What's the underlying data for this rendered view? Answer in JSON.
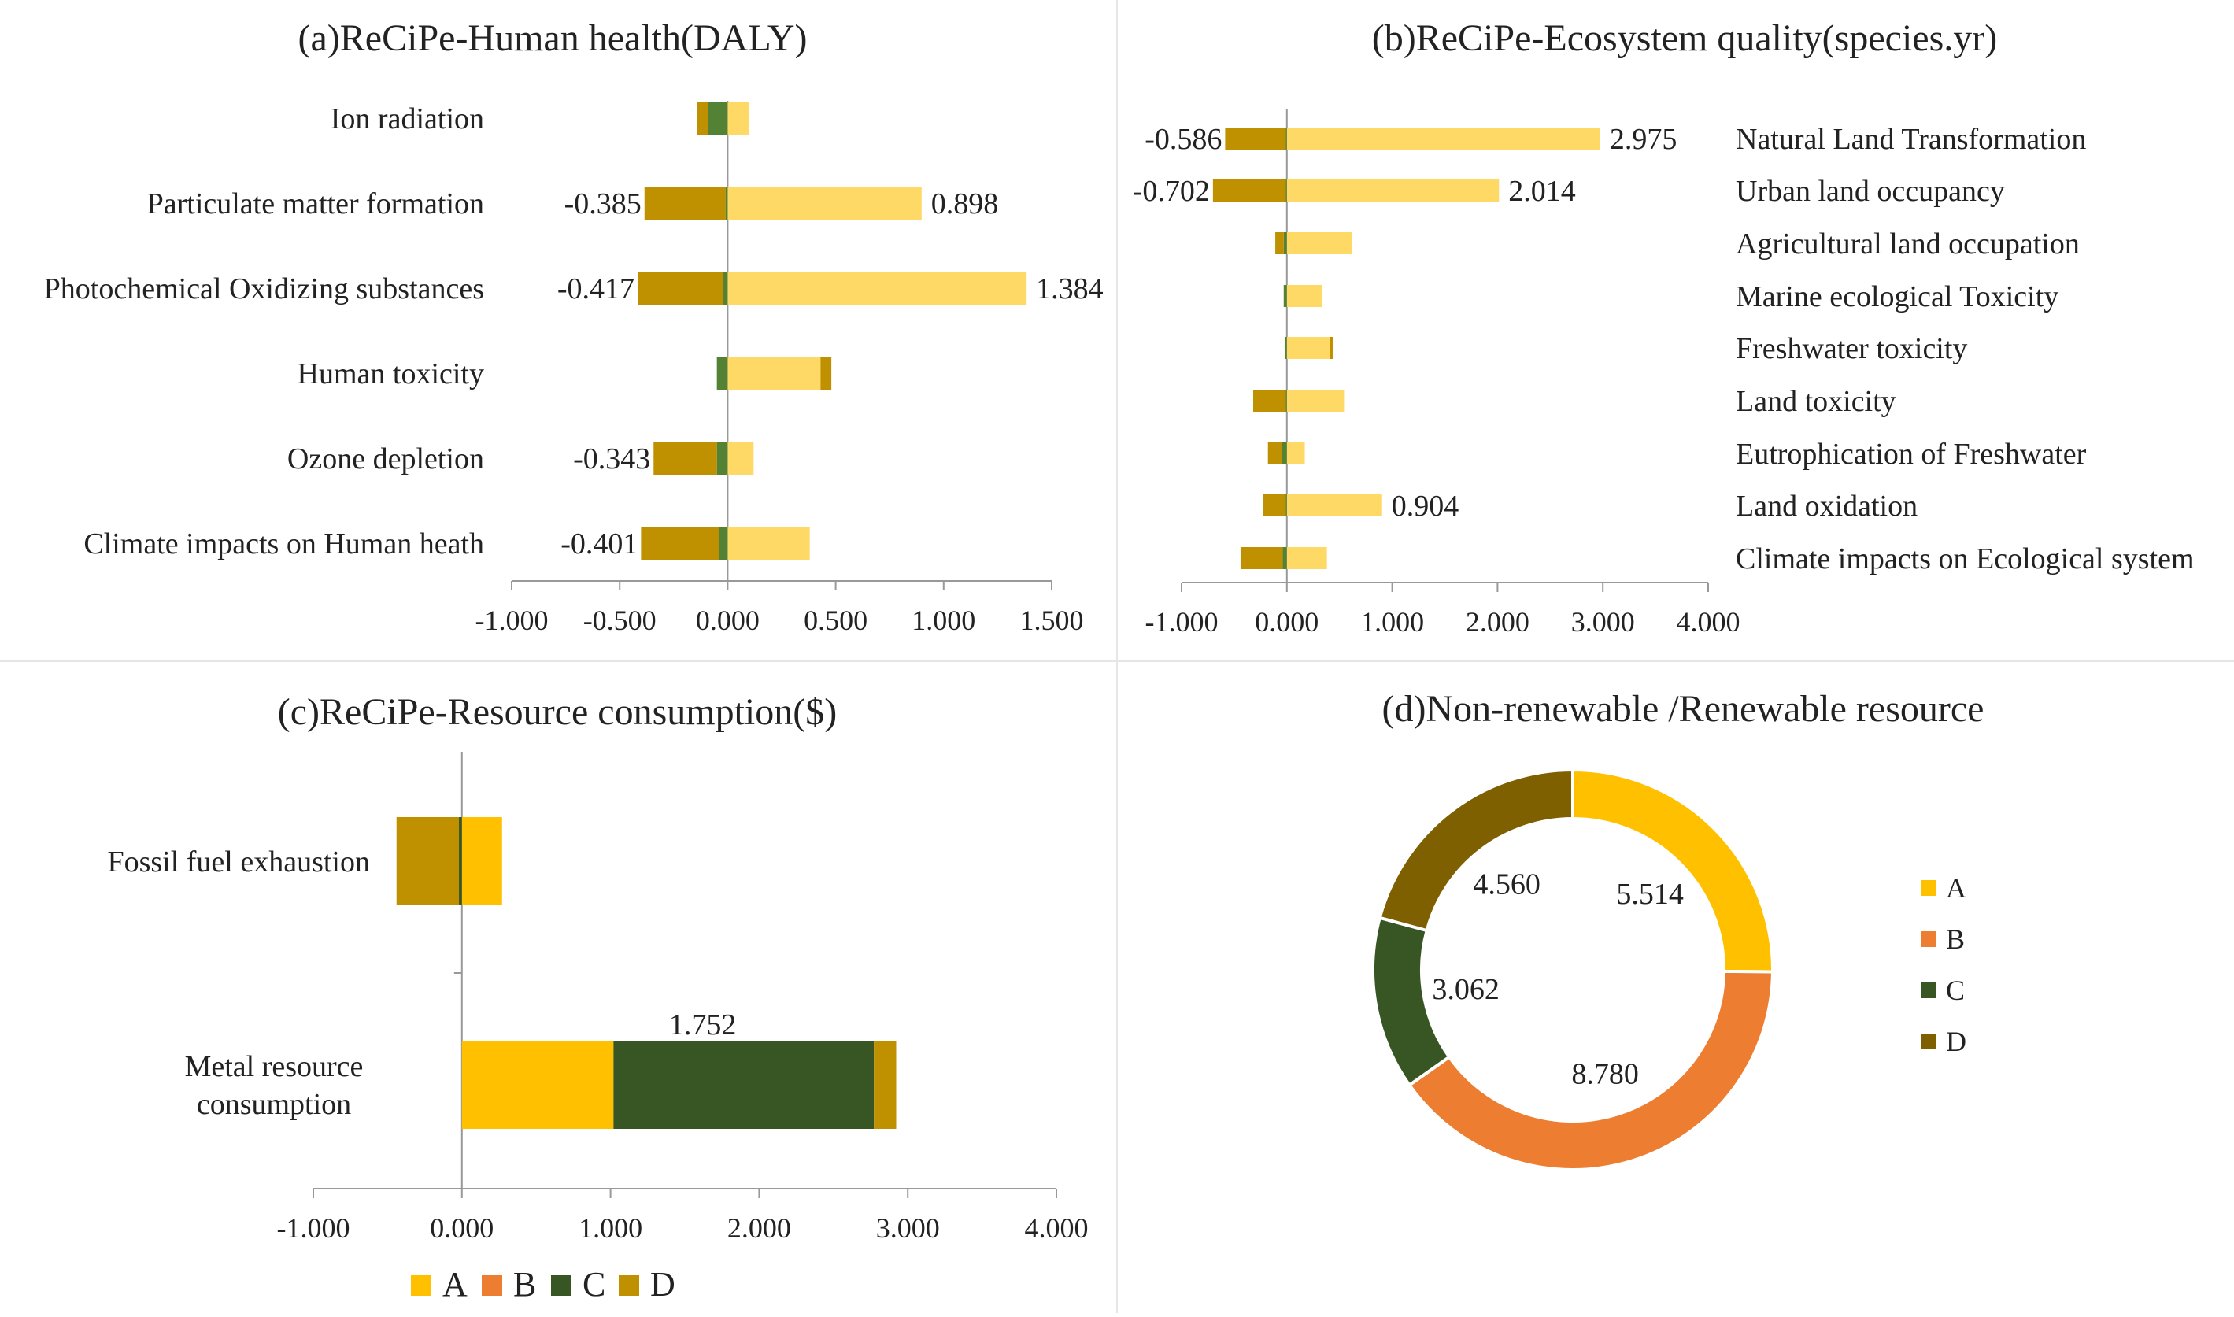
{
  "colors": {
    "A": "#FFD966",
    "A_solid": "#FFC000",
    "B": "#ED7D31",
    "C": "#375623",
    "C_small": "#548235",
    "D": "#BF9000",
    "D_donut": "#7F6000",
    "axis": "#999999",
    "divider": "#e6e6e6"
  },
  "legend": [
    "A",
    "B",
    "C",
    "D"
  ],
  "chart_data": [
    {
      "id": "a",
      "type": "bar",
      "orientation": "horizontal",
      "stacked": true,
      "title": "(a)ReCiPe-Human health(DALY)",
      "xlim": [
        -1.0,
        1.5
      ],
      "ticks": [
        "-1.000",
        "-0.500",
        "0.000",
        "0.500",
        "1.000",
        "1.500"
      ],
      "tick_values": [
        -1.0,
        -0.5,
        0.0,
        0.5,
        1.0,
        1.5
      ],
      "categories": [
        "Ion radiation",
        "Particulate matter formation",
        "Photochemical Oxidizing substances",
        "Human toxicity",
        "Ozone depletion",
        "Climate impacts on Human heath"
      ],
      "series": [
        {
          "key": "A",
          "values": [
            0.1,
            0.898,
            1.384,
            0.43,
            0.12,
            0.38
          ]
        },
        {
          "key": "B",
          "values": [
            0.0,
            0.0,
            0.0,
            0.0,
            0.0,
            0.0
          ]
        },
        {
          "key": "C",
          "values": [
            -0.09,
            -0.01,
            -0.02,
            -0.05,
            -0.05,
            -0.04
          ]
        },
        {
          "key": "D",
          "values": [
            -0.05,
            -0.375,
            -0.397,
            0.05,
            -0.293,
            -0.361
          ]
        }
      ],
      "labels": [
        {
          "cat": 1,
          "side": "neg",
          "text": "-0.385"
        },
        {
          "cat": 1,
          "side": "pos",
          "text": "0.898"
        },
        {
          "cat": 2,
          "side": "neg",
          "text": "-0.417"
        },
        {
          "cat": 2,
          "side": "pos",
          "text": "1.384"
        },
        {
          "cat": 4,
          "side": "neg",
          "text": "-0.343"
        },
        {
          "cat": 5,
          "side": "neg",
          "text": "-0.401"
        }
      ]
    },
    {
      "id": "b",
      "type": "bar",
      "orientation": "horizontal",
      "stacked": true,
      "title": "(b)ReCiPe-Ecosystem quality(species.yr)",
      "xlim": [
        -1.0,
        4.0
      ],
      "ticks": [
        "-1.000",
        "0.000",
        "1.000",
        "2.000",
        "3.000",
        "4.000"
      ],
      "tick_values": [
        -1.0,
        0.0,
        1.0,
        2.0,
        3.0,
        4.0
      ],
      "categories": [
        "Natural Land Transformation",
        "Urban land occupancy",
        "Agricultural land occupation",
        "Marine ecological Toxicity",
        "Freshwater toxicity",
        "Land toxicity",
        "Eutrophication of Freshwater",
        "Land oxidation",
        "Climate impacts on Ecological system"
      ],
      "series": [
        {
          "key": "A",
          "values": [
            2.975,
            2.014,
            0.62,
            0.33,
            0.41,
            0.55,
            0.17,
            0.904,
            0.38
          ]
        },
        {
          "key": "B",
          "values": [
            0,
            0,
            0,
            0,
            0,
            0,
            0,
            0,
            0
          ]
        },
        {
          "key": "C",
          "values": [
            -0.01,
            -0.01,
            -0.03,
            -0.03,
            -0.02,
            -0.01,
            -0.05,
            -0.01,
            -0.04
          ]
        },
        {
          "key": "D",
          "values": [
            -0.576,
            -0.692,
            -0.08,
            0.0,
            0.03,
            -0.31,
            -0.13,
            -0.22,
            -0.4
          ]
        }
      ],
      "labels": [
        {
          "cat": 0,
          "side": "neg",
          "text": "-0.586"
        },
        {
          "cat": 0,
          "side": "pos",
          "text": "2.975"
        },
        {
          "cat": 1,
          "side": "neg",
          "text": "-0.702"
        },
        {
          "cat": 1,
          "side": "pos",
          "text": "2.014"
        },
        {
          "cat": 7,
          "side": "pos",
          "text": "0.904"
        }
      ]
    },
    {
      "id": "c",
      "type": "bar",
      "orientation": "horizontal",
      "stacked": true,
      "title": "(c)ReCiPe-Resource consumption($)",
      "xlim": [
        -1.0,
        4.0
      ],
      "ticks": [
        "-1.000",
        "0.000",
        "1.000",
        "2.000",
        "3.000",
        "4.000"
      ],
      "tick_values": [
        -1.0,
        0.0,
        1.0,
        2.0,
        3.0,
        4.0
      ],
      "categories": [
        "Fossil fuel exhaustion",
        "Metal resource consumption"
      ],
      "category_lines": [
        [
          "Fossil fuel exhaustion"
        ],
        [
          "Metal resource",
          "consumption"
        ]
      ],
      "series": [
        {
          "key": "A",
          "values": [
            0.27,
            1.02
          ]
        },
        {
          "key": "B",
          "values": [
            0.0,
            0.0
          ]
        },
        {
          "key": "C",
          "values": [
            -0.02,
            1.752
          ]
        },
        {
          "key": "D",
          "values": [
            -0.42,
            0.15
          ]
        }
      ],
      "labels": [
        {
          "cat": 1,
          "side": "above",
          "text": "1.752"
        }
      ],
      "legend": [
        "A",
        "B",
        "C",
        "D"
      ]
    },
    {
      "id": "d",
      "type": "pie",
      "donut": true,
      "title": "(d)Non-renewable /Renewable resource",
      "slices": [
        {
          "key": "A",
          "value": 5.514,
          "label": "5.514"
        },
        {
          "key": "B",
          "value": 8.78,
          "label": "8.780"
        },
        {
          "key": "C",
          "value": 3.062,
          "label": "3.062"
        },
        {
          "key": "D",
          "value": 4.56,
          "label": "4.560"
        }
      ],
      "legend": [
        "A",
        "B",
        "C",
        "D"
      ],
      "legend_position": "right"
    }
  ]
}
